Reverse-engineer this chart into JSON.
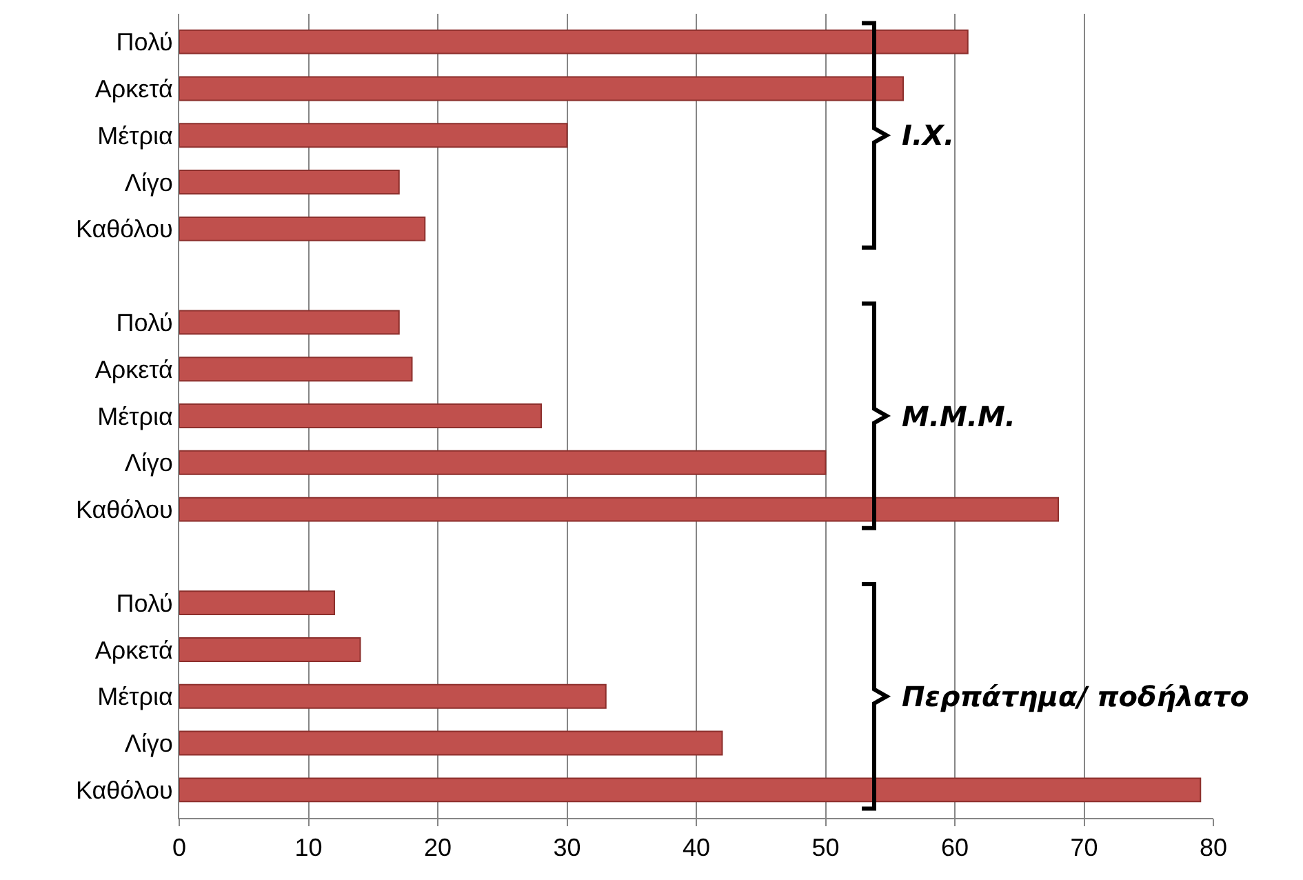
{
  "chart_data": {
    "type": "bar",
    "orientation": "horizontal",
    "categories": [
      "Πολύ",
      "Αρκετά",
      "Μέτρια",
      "Λίγο",
      "Καθόλου",
      null,
      "Πολύ",
      "Αρκετά",
      "Μέτρια",
      "Λίγο",
      "Καθόλου",
      null,
      "Πολύ",
      "Αρκετά",
      "Μέτρια",
      "Λίγο",
      "Καθόλου"
    ],
    "values": [
      61,
      56,
      30,
      17,
      19,
      null,
      17,
      18,
      28,
      50,
      68,
      null,
      12,
      14,
      33,
      42,
      79
    ],
    "color": "#c0504d",
    "xlim": [
      0,
      80
    ],
    "xticks": [
      0,
      10,
      20,
      30,
      40,
      50,
      60,
      70,
      80
    ],
    "grid": "x",
    "legend": false,
    "annotations": [
      "Ι.Χ.",
      "Μ.Μ.Μ.",
      "Περπάτημα/ ποδήλατο"
    ]
  }
}
